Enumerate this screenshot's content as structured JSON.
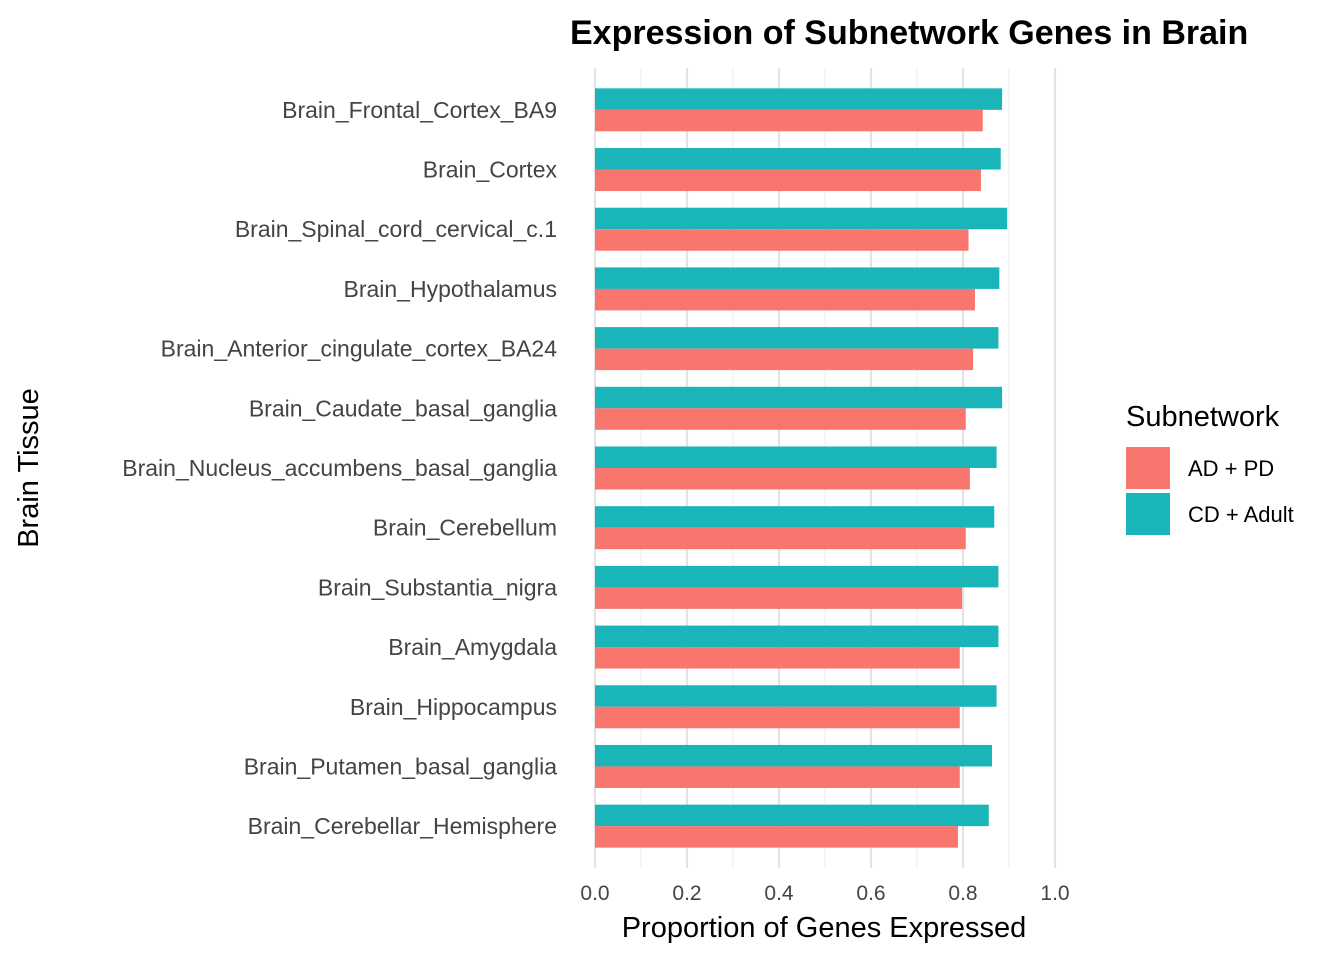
{
  "chart_data": {
    "type": "bar",
    "orientation": "horizontal",
    "title": "Expression of Subnetwork Genes in Brain",
    "xlabel": "Proportion of Genes Expressed",
    "ylabel": "Brain Tissue",
    "xlim": [
      0,
      1.0
    ],
    "x_ticks": [
      "0.0",
      "0.2",
      "0.4",
      "0.6",
      "0.8",
      "1.0"
    ],
    "grid": true,
    "legend": {
      "title": "Subnetwork",
      "position": "right"
    },
    "categories": [
      "Brain_Frontal_Cortex_BA9",
      "Brain_Cortex",
      "Brain_Spinal_cord_cervical_c.1",
      "Brain_Hypothalamus",
      "Brain_Anterior_cingulate_cortex_BA24",
      "Brain_Caudate_basal_ganglia",
      "Brain_Nucleus_accumbens_basal_ganglia",
      "Brain_Cerebellum",
      "Brain_Substantia_nigra",
      "Brain_Amygdala",
      "Brain_Hippocampus",
      "Brain_Putamen_basal_ganglia",
      "Brain_Cerebellar_Hemisphere"
    ],
    "series": [
      {
        "name": "AD + PD",
        "color": "#F8766D",
        "values": [
          0.843,
          0.839,
          0.812,
          0.826,
          0.822,
          0.806,
          0.815,
          0.806,
          0.798,
          0.793,
          0.793,
          0.793,
          0.789
        ]
      },
      {
        "name": "CD + Adult",
        "color": "#19B5B8",
        "values": [
          0.885,
          0.882,
          0.896,
          0.879,
          0.877,
          0.885,
          0.873,
          0.868,
          0.877,
          0.877,
          0.873,
          0.863,
          0.856
        ]
      }
    ]
  }
}
